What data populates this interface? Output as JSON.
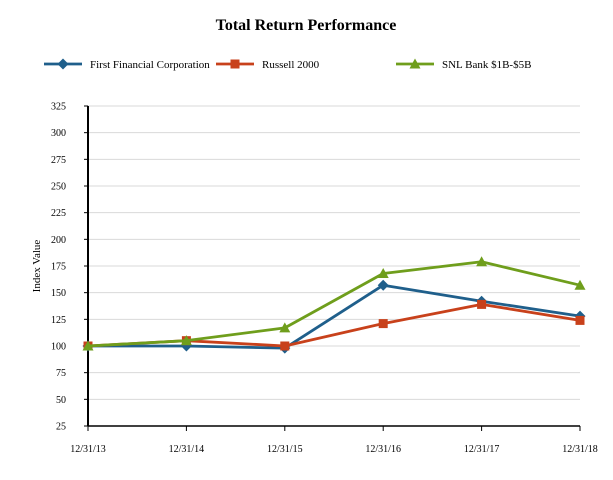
{
  "chart_data": {
    "type": "line",
    "title": "Total Return Performance",
    "xlabel": "",
    "ylabel": "Index Value",
    "categories": [
      "12/31/13",
      "12/31/14",
      "12/31/15",
      "12/31/16",
      "12/31/17",
      "12/31/18"
    ],
    "ylim": [
      25,
      325
    ],
    "yticks": [
      25,
      50,
      75,
      100,
      125,
      150,
      175,
      200,
      225,
      250,
      275,
      300,
      325
    ],
    "grid": true,
    "legend_position": "top",
    "series": [
      {
        "name": "First Financial Corporation",
        "color": "#1f5f8b",
        "marker": "diamond",
        "values": [
          100,
          100,
          98,
          157,
          142,
          128
        ]
      },
      {
        "name": "Russell 2000",
        "color": "#c8411b",
        "marker": "square",
        "values": [
          100,
          105,
          100,
          121,
          139,
          124
        ]
      },
      {
        "name": "SNL Bank $1B-$5B",
        "color": "#6f9e1c",
        "marker": "triangle",
        "values": [
          100,
          105,
          117,
          168,
          179,
          157
        ]
      }
    ]
  }
}
